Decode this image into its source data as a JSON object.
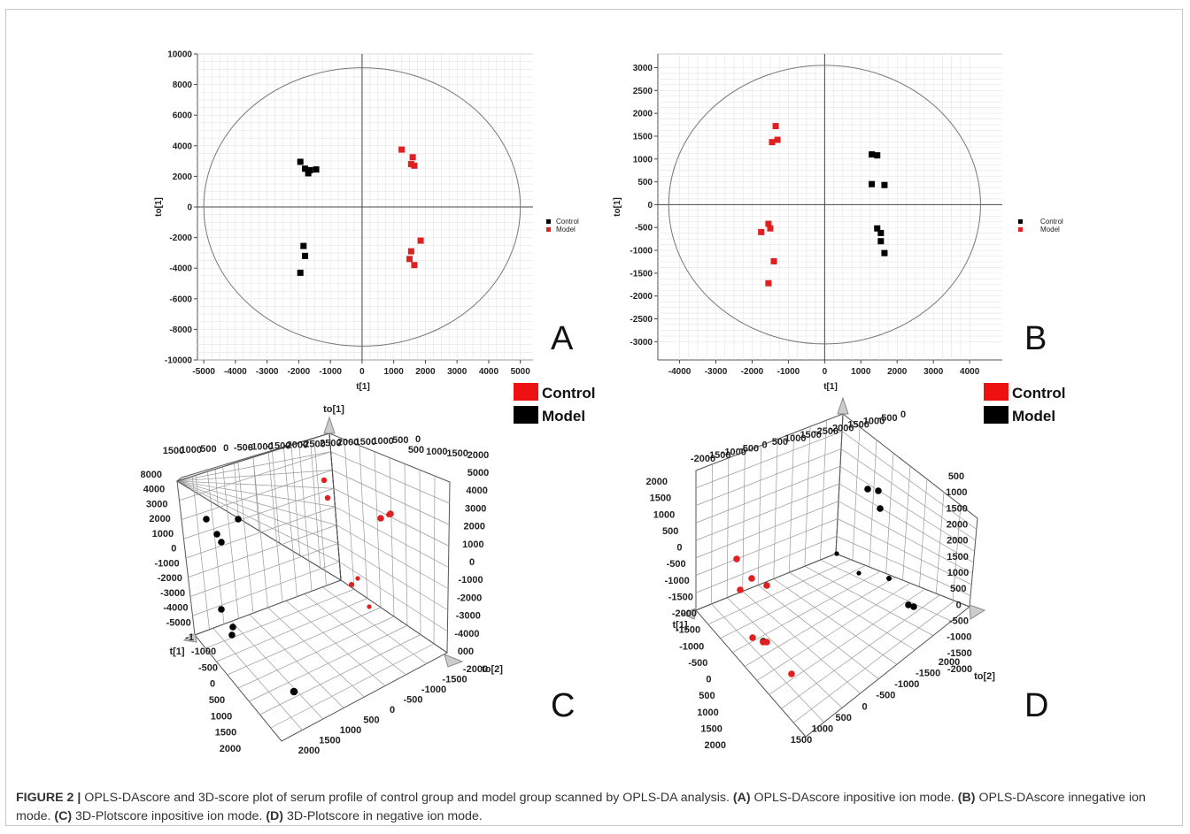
{
  "caption": {
    "figure_label": "FIGURE 2 |",
    "main": " OPLS-DAscore and 3D-score plot of serum profile of control group and model group scanned by OPLS-DA analysis. ",
    "a_tag": "(A)",
    "a_text": " OPLS-DAscore inpositive ion mode. ",
    "b_tag": "(B)",
    "b_text": " OPLS-DAscore innegative ion mode. ",
    "c_tag": "(C)",
    "c_text": " 3D-Plotscore inpositive ion mode. ",
    "d_tag": "(D)",
    "d_text": " 3D-Plotscore in negative ion mode."
  },
  "colors": {
    "control": "#000000",
    "model": "#e02020",
    "legend_control": "#ee1111",
    "legend_model": "#000000"
  },
  "big_legend": [
    {
      "label": "Control",
      "color": "#ee1111"
    },
    {
      "label": "Model",
      "color": "#000000"
    }
  ],
  "chart_data": [
    {
      "type": "scatter",
      "panel_letter": "A",
      "xlabel": "t[1]",
      "ylabel": "to[1]",
      "xlim": [
        -5200,
        5400
      ],
      "ylim": [
        -10000,
        10000
      ],
      "xticks": [
        -5000,
        -4000,
        -3000,
        -2000,
        -1000,
        0,
        1000,
        2000,
        3000,
        4000,
        5000
      ],
      "yticks": [
        -10000,
        -8000,
        -6000,
        -4000,
        -2000,
        0,
        2000,
        4000,
        6000,
        8000,
        10000
      ],
      "ellipse": {
        "rx": 5000,
        "ry": 9100
      },
      "legend": [
        "Control",
        "Model"
      ],
      "series": [
        {
          "name": "Control",
          "color": "#000000",
          "points": [
            [
              -1950,
              2950
            ],
            [
              -1800,
              2500
            ],
            [
              -1650,
              2400
            ],
            [
              -1450,
              2450
            ],
            [
              -1700,
              2200
            ],
            [
              -1850,
              -2550
            ],
            [
              -1800,
              -3200
            ],
            [
              -1950,
              -4300
            ]
          ]
        },
        {
          "name": "Model",
          "color": "#e02020",
          "points": [
            [
              1250,
              3750
            ],
            [
              1600,
              3250
            ],
            [
              1550,
              2800
            ],
            [
              1650,
              2700
            ],
            [
              1850,
              -2200
            ],
            [
              1550,
              -2900
            ],
            [
              1500,
              -3400
            ],
            [
              1650,
              -3800
            ]
          ]
        }
      ]
    },
    {
      "type": "scatter",
      "panel_letter": "B",
      "xlabel": "t[1]",
      "ylabel": "to[1]",
      "xlim": [
        -4600,
        4900
      ],
      "ylim": [
        -3400,
        3300
      ],
      "xticks": [
        -4000,
        -3000,
        -2000,
        -1000,
        0,
        1000,
        2000,
        3000,
        4000
      ],
      "yticks": [
        -3000,
        -2500,
        -2000,
        -1500,
        -1000,
        -500,
        0,
        500,
        1000,
        1500,
        2000,
        2500,
        3000
      ],
      "ellipse": {
        "rx": 4300,
        "ry": 3050
      },
      "legend": [
        "Control",
        "Model"
      ],
      "series": [
        {
          "name": "Control",
          "color": "#000000",
          "points": [
            [
              1300,
              1100
            ],
            [
              1450,
              1080
            ],
            [
              1300,
              450
            ],
            [
              1650,
              430
            ],
            [
              1450,
              -520
            ],
            [
              1550,
              -620
            ],
            [
              1550,
              -800
            ],
            [
              1650,
              -1060
            ]
          ]
        },
        {
          "name": "Model",
          "color": "#e02020",
          "points": [
            [
              -1350,
              1720
            ],
            [
              -1300,
              1420
            ],
            [
              -1450,
              1370
            ],
            [
              -1550,
              -420
            ],
            [
              -1500,
              -520
            ],
            [
              -1750,
              -600
            ],
            [
              -1400,
              -1240
            ],
            [
              -1550,
              -1720
            ]
          ]
        }
      ]
    },
    {
      "type": "scatter",
      "panel_letter": "C",
      "axis_titles": [
        "to[1]",
        "t[1]",
        "to[2]"
      ],
      "tick_labels": {
        "top": [
          "1500",
          "1000",
          "500",
          "0",
          "-500",
          "-1000",
          "-1500",
          "-2000",
          "-2500",
          "2500",
          "2000",
          "1500",
          "1000",
          "500",
          "0"
        ],
        "top_right": [
          "500",
          "1000",
          "1500",
          "2000"
        ],
        "left": [
          "8000",
          "4000",
          "3000",
          "2000",
          "1000",
          "0",
          "-1000",
          "-2000",
          "-3000",
          "-4000",
          "-5000",
          "-1"
        ],
        "right": [
          "5000",
          "4000",
          "3000",
          "2000",
          "1000",
          "0",
          "-1000",
          "-2000",
          "-3000",
          "-4000",
          "000"
        ],
        "front": [
          "-1000",
          "-500",
          "0",
          "500",
          "1000",
          "1500",
          "2000"
        ],
        "bottom": [
          "2000",
          "1500",
          "1000",
          "500",
          "0",
          "-500",
          "-1000",
          "-1500",
          "-2000"
        ]
      },
      "series": [
        {
          "name": "Control",
          "color": "#000000",
          "count": 9
        },
        {
          "name": "Model",
          "color": "#e02020",
          "count": 8
        }
      ]
    },
    {
      "type": "scatter",
      "panel_letter": "D",
      "axis_titles": [
        "t[1]",
        "to[2]"
      ],
      "tick_labels": {
        "top": [
          "-2000",
          "-1500",
          "-1000",
          "-500",
          "0",
          "500",
          "1000",
          "1500",
          "-2500",
          "-2000",
          "-1500",
          "-1000",
          "-500",
          "0"
        ],
        "left": [
          "2000",
          "1500",
          "1000",
          "500",
          "0",
          "-500",
          "-1000",
          "-1500",
          "-2000",
          "-1500",
          "-1000",
          "-500",
          "0",
          "500",
          "1000",
          "1500",
          "2000"
        ],
        "right": [
          "500",
          "1000",
          "1500",
          "2000",
          "2000",
          "1500",
          "1000",
          "500",
          "0",
          "-500",
          "-1000",
          "-1500",
          "-2000"
        ],
        "bottom": [
          "1500",
          "1000",
          "500",
          "0",
          "-500",
          "-1000",
          "-1500",
          "2000"
        ]
      },
      "series": [
        {
          "name": "Control",
          "color": "#000000",
          "count": 9
        },
        {
          "name": "Model",
          "color": "#e02020",
          "count": 8
        }
      ]
    }
  ]
}
